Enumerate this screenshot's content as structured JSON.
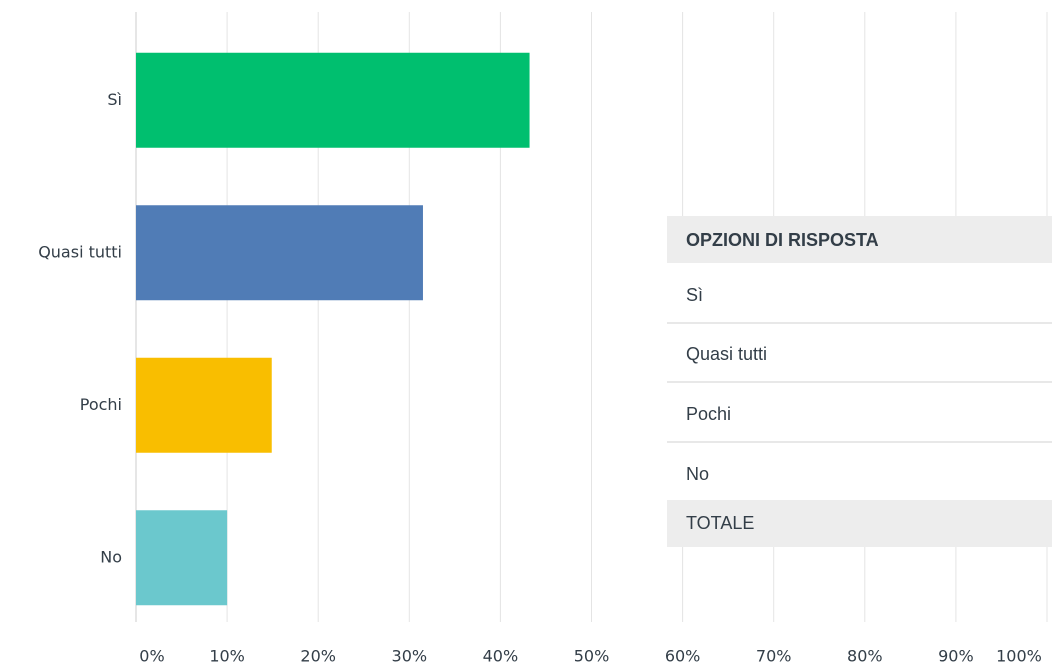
{
  "chart_data": {
    "type": "barh",
    "categories": [
      "Sì",
      "Quasi tutti",
      "Pochi",
      "No"
    ],
    "values": [
      43.2,
      31.5,
      14.9,
      10.0
    ],
    "colors": [
      "#00bf6f",
      "#507cb6",
      "#f9be00",
      "#6bc8cd"
    ],
    "xlim": [
      0,
      100
    ],
    "xticks": [
      {
        "value": 0,
        "label": "0%"
      },
      {
        "value": 10,
        "label": "10%"
      },
      {
        "value": 20,
        "label": "20%"
      },
      {
        "value": 30,
        "label": "30%"
      },
      {
        "value": 40,
        "label": "40%"
      },
      {
        "value": 50,
        "label": "50%"
      },
      {
        "value": 60,
        "label": "60%"
      },
      {
        "value": 70,
        "label": "70%"
      },
      {
        "value": 80,
        "label": "80%"
      },
      {
        "value": 90,
        "label": "90%"
      },
      {
        "value": 100,
        "label": "100%"
      }
    ],
    "grid": true,
    "table": {
      "header": "OPZIONI DI RISPOSTA",
      "rows": [
        "Sì",
        "Quasi tutti",
        "Pochi",
        "No"
      ],
      "total": "TOTALE"
    }
  }
}
